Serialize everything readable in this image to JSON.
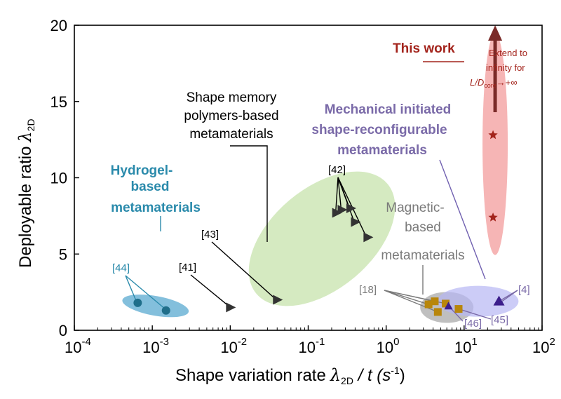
{
  "chart_data": {
    "type": "scatter",
    "xlabel": {
      "main": "Shape variation rate",
      "sym": "λ",
      "sub": "2D",
      "rest": " / t (s",
      "sup": "-1",
      "end": ")"
    },
    "ylabel": {
      "main": "Deployable ratio",
      "sym": "λ",
      "sub": "2D"
    },
    "xscale": "log",
    "xlim": [
      0.0001,
      100
    ],
    "ylim": [
      0,
      20
    ],
    "xticks": [
      {
        "base": "10",
        "exp": "-4",
        "v": 0.0001
      },
      {
        "base": "10",
        "exp": "-3",
        "v": 0.001
      },
      {
        "base": "10",
        "exp": "-2",
        "v": 0.01
      },
      {
        "base": "10",
        "exp": "-1",
        "v": 0.1
      },
      {
        "base": "10",
        "exp": "0",
        "v": 1
      },
      {
        "base": "10",
        "exp": "1",
        "v": 10
      },
      {
        "base": "10",
        "exp": "2",
        "v": 100
      }
    ],
    "yticks": [
      {
        "label": "0",
        "v": 0
      },
      {
        "label": "5",
        "v": 5
      },
      {
        "label": "10",
        "v": 10
      },
      {
        "label": "15",
        "v": 15
      },
      {
        "label": "20",
        "v": 20
      }
    ],
    "groups": [
      {
        "label": "Hydrogel-\nbased\nmetamaterials",
        "color": "#2a8aab",
        "label_color": "#2a8aab",
        "marker": "circle",
        "marker_color": "#1f6e8a",
        "ellipse": {
          "cx": 0.0011,
          "cy": 1.6,
          "fill": "#5aaad0",
          "opacity": 0.75
        },
        "points": [
          {
            "x": 0.00065,
            "y": 1.8
          },
          {
            "x": 0.0015,
            "y": 1.3
          }
        ]
      },
      {
        "label": "Shape memory\npolymers-based\nmetamaterials",
        "color": "#000000",
        "label_color": "#000000",
        "marker": "triangle-right",
        "marker_color": "#333333",
        "ellipse": {
          "cx": 0.15,
          "cy": 6.0,
          "fill": "#b9dc97",
          "opacity": 0.6
        },
        "points": [
          {
            "x": 0.01,
            "y": 1.5
          },
          {
            "x": 0.04,
            "y": 2.0
          },
          {
            "x": 0.23,
            "y": 7.7
          },
          {
            "x": 0.27,
            "y": 7.9
          },
          {
            "x": 0.35,
            "y": 8.0
          },
          {
            "x": 0.4,
            "y": 7.1
          },
          {
            "x": 0.58,
            "y": 6.1
          }
        ]
      },
      {
        "label": "Magnetic-\nbased\nmetamaterials",
        "color": "#7a7a7a",
        "label_color": "#7a7a7a",
        "marker": "square",
        "marker_color": "#b8860b",
        "ellipse": {
          "cx": 6,
          "cy": 1.5,
          "fill": "#8a8a8a",
          "opacity": 0.55
        },
        "points": [
          {
            "x": 3.5,
            "y": 1.7
          },
          {
            "x": 4.2,
            "y": 1.9
          },
          {
            "x": 4.6,
            "y": 1.2
          },
          {
            "x": 5.8,
            "y": 1.75
          },
          {
            "x": 8.5,
            "y": 1.4
          }
        ]
      },
      {
        "label": "Mechanical initiated\nshape-reconfigurable\nmetamaterials",
        "color": "#7060b0",
        "label_color": "#7a6aa8",
        "marker": "triangle-up",
        "marker_color": "#3c1e8c",
        "ellipse": {
          "cx": 15,
          "cy": 1.9,
          "fill": "#b7b7f3",
          "opacity": 0.7
        },
        "points": [
          {
            "x": 6.3,
            "y": 1.6
          },
          {
            "x": 28,
            "y": 1.9
          }
        ]
      },
      {
        "label": "This work",
        "color": "#a3241c",
        "label_color": "#a3241c",
        "marker": "star",
        "marker_color": "#a3241c",
        "ellipse": {
          "cx": 25,
          "cy": 12.2,
          "fill": "#f4a2a2",
          "opacity": 0.8
        },
        "points": [
          {
            "x": 23.5,
            "y": 12.8
          },
          {
            "x": 23.5,
            "y": 7.4
          }
        ],
        "note": "Extend to infinity for L/D_core → +∞"
      }
    ],
    "refs": [
      "[44]",
      "[41]",
      "[43]",
      "[42]",
      "[18]",
      "[46]",
      "[45]",
      "[4]"
    ]
  },
  "labels": {
    "hydrogel": [
      "Hydrogel-",
      "based",
      "metamaterials"
    ],
    "smp": [
      "Shape memory",
      "polymers-based",
      "metamaterials"
    ],
    "magnetic": [
      "Magnetic-",
      "based",
      "metamaterials"
    ],
    "mechanical": [
      "Mechanical initiated",
      "shape-reconfigurable",
      "metamaterials"
    ],
    "this_work": "This work",
    "extend": [
      "Extend to",
      "infinity for"
    ],
    "extend_math": {
      "var": "L/D",
      "sub": "core",
      "arrow": "→+∞"
    }
  }
}
